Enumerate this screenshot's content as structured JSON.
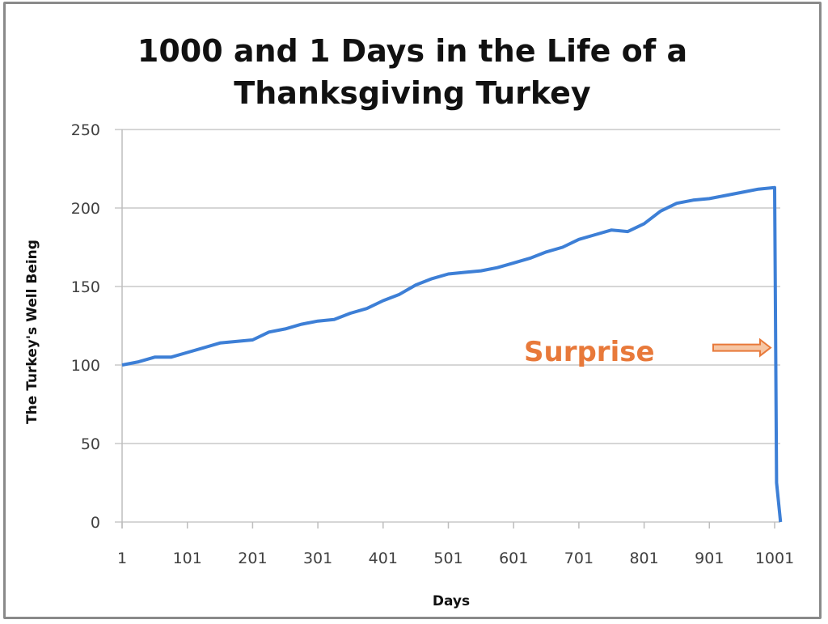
{
  "chart_data": {
    "type": "line",
    "title_lines": [
      "1000 and 1 Days in the Life of a",
      "Thanksgiving Turkey"
    ],
    "xlabel": "Days",
    "ylabel": "The Turkey's Well Being",
    "xlim": [
      1,
      1001
    ],
    "ylim": [
      0,
      250
    ],
    "x_ticks": [
      1,
      101,
      201,
      301,
      401,
      501,
      601,
      701,
      801,
      901,
      1001
    ],
    "y_ticks": [
      0,
      50,
      100,
      150,
      200,
      250
    ],
    "grid": "horizontal",
    "line_color": "#3d7fd6",
    "series": [
      {
        "x": [
          1,
          26,
          51,
          76,
          101,
          126,
          151,
          176,
          201,
          226,
          251,
          276,
          301,
          326,
          351,
          376,
          401,
          426,
          451,
          476,
          501,
          526,
          551,
          576,
          601,
          626,
          651,
          676,
          701,
          726,
          751,
          776,
          801,
          826,
          851,
          876,
          901,
          926,
          951,
          976,
          1001,
          1004,
          1010
        ],
        "y": [
          100,
          102,
          105,
          105,
          108,
          111,
          114,
          115,
          116,
          121,
          123,
          126,
          128,
          129,
          133,
          136,
          141,
          145,
          151,
          155,
          158,
          159,
          160,
          162,
          165,
          168,
          172,
          175,
          180,
          183,
          186,
          185,
          190,
          198,
          203,
          205,
          206,
          208,
          210,
          212,
          213,
          25,
          0
        ]
      }
    ],
    "annotation": {
      "text": "Surprise",
      "color": "#e8793a",
      "arrow": "right",
      "arrow_at_value": 110
    }
  }
}
